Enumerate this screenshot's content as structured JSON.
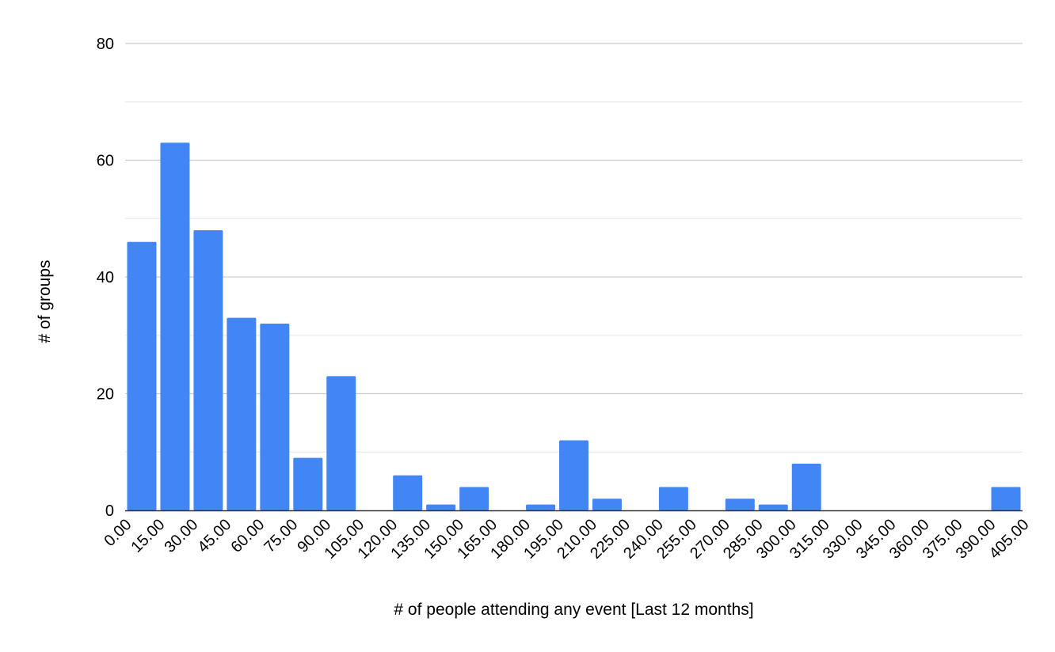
{
  "chart_data": {
    "type": "bar",
    "title": "",
    "xlabel": "# of people attending any event [Last 12 months]",
    "ylabel": "# of groups",
    "ylim": [
      0,
      80
    ],
    "yticks": [
      "0",
      "20",
      "40",
      "60",
      "80"
    ],
    "grid": true,
    "minor_grid": true,
    "bar_color": "#4285f4",
    "x_tick_labels": [
      "0.00",
      "15.00",
      "30.00",
      "45.00",
      "60.00",
      "75.00",
      "90.00",
      "105.00",
      "120.00",
      "135.00",
      "150.00",
      "165.00",
      "180.00",
      "195.00",
      "210.00",
      "225.00",
      "240.00",
      "255.00",
      "270.00",
      "285.00",
      "300.00",
      "315.00",
      "330.00",
      "345.00",
      "360.00",
      "375.00",
      "390.00",
      "405.00"
    ],
    "bins": [
      {
        "x0": 0,
        "x1": 15,
        "value": 46
      },
      {
        "x0": 15,
        "x1": 30,
        "value": 63
      },
      {
        "x0": 30,
        "x1": 45,
        "value": 48
      },
      {
        "x0": 45,
        "x1": 60,
        "value": 33
      },
      {
        "x0": 60,
        "x1": 75,
        "value": 32
      },
      {
        "x0": 75,
        "x1": 90,
        "value": 9
      },
      {
        "x0": 90,
        "x1": 105,
        "value": 23
      },
      {
        "x0": 105,
        "x1": 120,
        "value": 0
      },
      {
        "x0": 120,
        "x1": 135,
        "value": 6
      },
      {
        "x0": 135,
        "x1": 150,
        "value": 1
      },
      {
        "x0": 150,
        "x1": 165,
        "value": 4
      },
      {
        "x0": 165,
        "x1": 180,
        "value": 0
      },
      {
        "x0": 180,
        "x1": 195,
        "value": 1
      },
      {
        "x0": 195,
        "x1": 210,
        "value": 12
      },
      {
        "x0": 210,
        "x1": 225,
        "value": 2
      },
      {
        "x0": 225,
        "x1": 240,
        "value": 0
      },
      {
        "x0": 240,
        "x1": 255,
        "value": 4
      },
      {
        "x0": 255,
        "x1": 270,
        "value": 0
      },
      {
        "x0": 270,
        "x1": 285,
        "value": 2
      },
      {
        "x0": 285,
        "x1": 300,
        "value": 1
      },
      {
        "x0": 300,
        "x1": 315,
        "value": 8
      },
      {
        "x0": 315,
        "x1": 330,
        "value": 0
      },
      {
        "x0": 330,
        "x1": 345,
        "value": 0
      },
      {
        "x0": 345,
        "x1": 360,
        "value": 0
      },
      {
        "x0": 360,
        "x1": 375,
        "value": 0
      },
      {
        "x0": 375,
        "x1": 390,
        "value": 0
      },
      {
        "x0": 390,
        "x1": 405,
        "value": 4
      }
    ]
  }
}
